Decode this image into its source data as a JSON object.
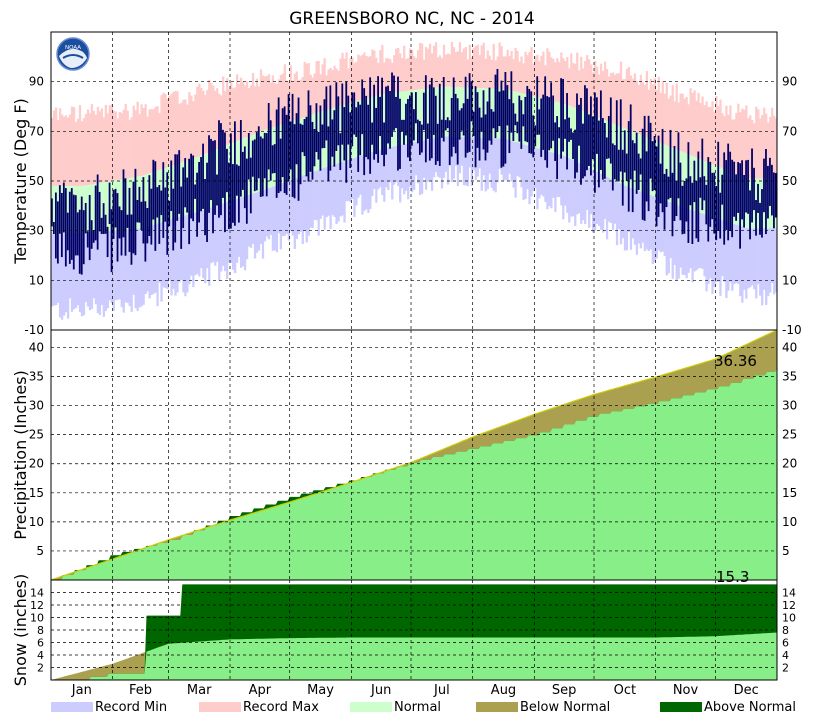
{
  "title": "GREENSBORO NC, NC - 2014",
  "colors": {
    "record_min": "#ccccff",
    "record_max": "#ffcccc",
    "normal": "#ccffcc",
    "actual_temp": "#000066",
    "precip_normal": "#88ee88",
    "below_normal": "#aaa050",
    "above_normal": "#006600",
    "grid": "#000000"
  },
  "chart_data": [
    {
      "type": "area",
      "panel": "temperature",
      "ylabel": "Temperature (Deg F)",
      "ylim": [
        -10,
        110
      ],
      "yticks": [
        -10,
        10,
        30,
        50,
        70,
        90
      ],
      "months": [
        "Jan",
        "Feb",
        "Mar",
        "Apr",
        "May",
        "Jun",
        "Jul",
        "Aug",
        "Sep",
        "Oct",
        "Nov",
        "Dec"
      ],
      "series": [
        {
          "name": "Record Min",
          "values": [
            -2,
            2,
            10,
            22,
            32,
            44,
            52,
            50,
            38,
            26,
            12,
            4
          ]
        },
        {
          "name": "Record Max",
          "values": [
            77,
            79,
            86,
            92,
            96,
            101,
            103,
            102,
            99,
            94,
            84,
            77
          ]
        },
        {
          "name": "Normal",
          "values": [
            [
              29,
              48
            ],
            [
              31,
              52
            ],
            [
              38,
              60
            ],
            [
              46,
              70
            ],
            [
              55,
              78
            ],
            [
              63,
              85
            ],
            [
              68,
              88
            ],
            [
              67,
              87
            ],
            [
              60,
              81
            ],
            [
              48,
              71
            ],
            [
              39,
              61
            ],
            [
              31,
              51
            ]
          ]
        },
        {
          "values": [
            [
              22,
              40
            ],
            [
              24,
              46
            ],
            [
              34,
              60
            ],
            [
              44,
              71
            ],
            [
              56,
              79
            ],
            [
              63,
              83
            ],
            [
              66,
              84
            ],
            [
              64,
              84
            ],
            [
              60,
              82
            ],
            [
              48,
              72
            ],
            [
              34,
              58
            ],
            [
              32,
              52
            ]
          ]
        }
      ]
    },
    {
      "type": "area",
      "panel": "precipitation",
      "ylabel": "Precipitation (Inches)",
      "ylim": [
        0,
        43
      ],
      "yticks": [
        5,
        10,
        15,
        20,
        25,
        30,
        35,
        40
      ],
      "label": "36.36",
      "normal_end": 43.0,
      "series": [
        {
          "name": "Normal",
          "values": [
            0,
            3.6,
            6.9,
            10.3,
            13.4,
            16.8,
            20.2,
            24.6,
            28.5,
            31.9,
            34.9,
            38.0,
            43.0
          ]
        },
        {
          "values": [
            0,
            4.4,
            6.8,
            11.0,
            14.3,
            17.2,
            20.3,
            22.7,
            25.1,
            28.4,
            30.6,
            33.1,
            36.36
          ]
        }
      ]
    },
    {
      "type": "area",
      "panel": "snow",
      "ylabel": "Snow (inches)",
      "ylim": [
        0,
        16
      ],
      "yticks": [
        2,
        4,
        6,
        8,
        10,
        12,
        14
      ],
      "label": "15.3",
      "series": [
        {
          "name": "Normal",
          "values": [
            0,
            2.6,
            5.8,
            6.5,
            6.7,
            6.8,
            6.8,
            6.8,
            6.8,
            6.8,
            6.8,
            7.0,
            7.6
          ]
        },
        {
          "values": [
            0,
            1.0,
            10.3,
            15.3,
            15.3,
            15.3,
            15.3,
            15.3,
            15.3,
            15.3,
            15.3,
            15.3,
            15.3
          ]
        }
      ]
    }
  ],
  "legend": [
    {
      "label": "Record Min",
      "color": "#ccccff"
    },
    {
      "label": "Record Max",
      "color": "#ffcccc"
    },
    {
      "label": "Normal",
      "color": "#ccffcc"
    },
    {
      "label": "Below Normal",
      "color": "#aaa050"
    },
    {
      "label": "Above Normal",
      "color": "#006600"
    }
  ],
  "logo": {
    "icon": "noaa-logo-icon",
    "text": "NOAA"
  }
}
